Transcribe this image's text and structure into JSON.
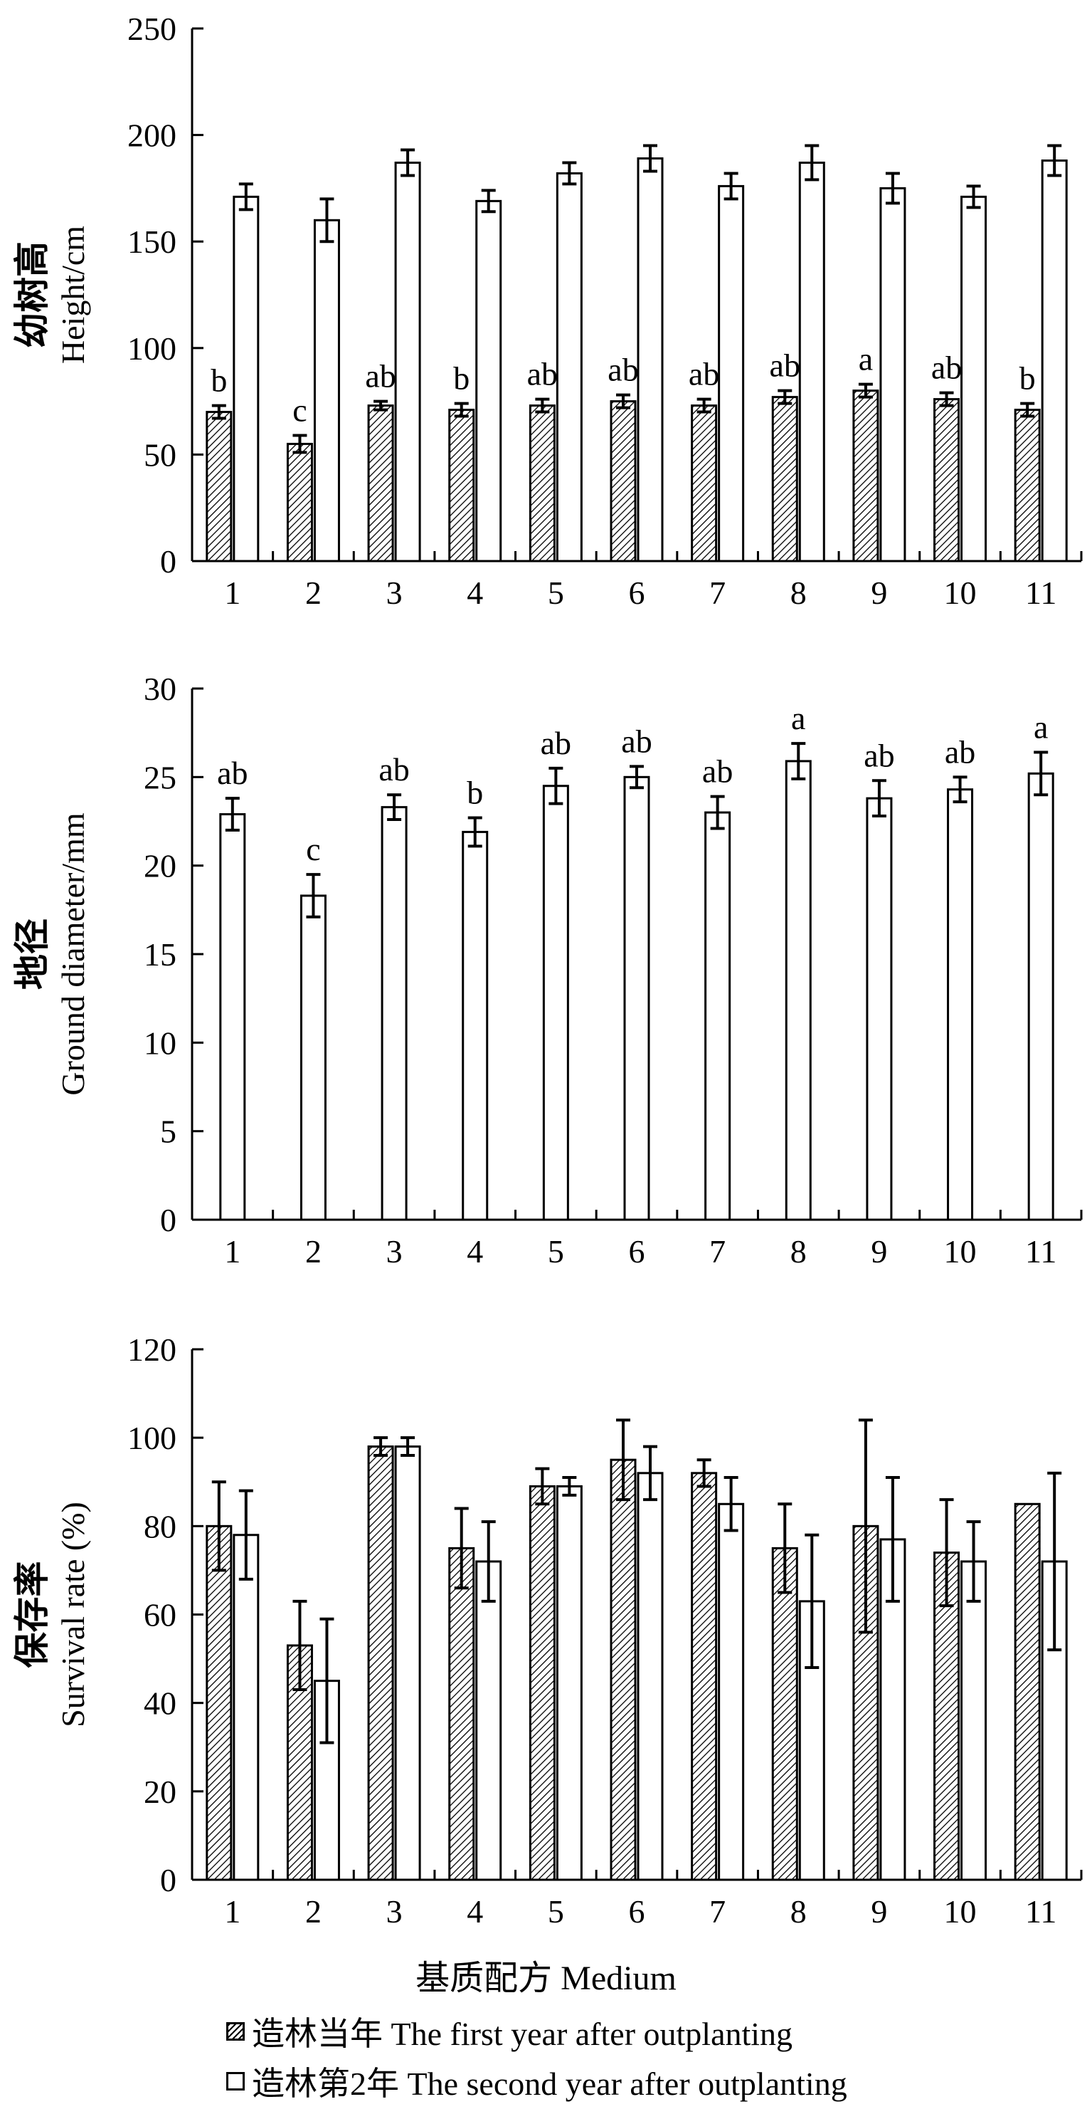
{
  "chart_data": [
    {
      "type": "bar",
      "title": "",
      "ylabel_cn": "幼树高",
      "ylabel_en": "Height/cm",
      "xlabel": "",
      "ylim": [
        0,
        250
      ],
      "yticks": [
        0,
        50,
        100,
        150,
        200,
        250
      ],
      "categories": [
        "1",
        "2",
        "3",
        "4",
        "5",
        "6",
        "7",
        "8",
        "9",
        "10",
        "11"
      ],
      "series": [
        {
          "name": "造林当年 The first year after outplanting",
          "style": "hatched",
          "values": [
            70,
            55,
            73,
            71,
            73,
            75,
            73,
            77,
            80,
            76,
            71
          ],
          "errors": [
            3,
            4,
            2,
            3,
            3,
            3,
            3,
            3,
            3,
            3,
            3
          ]
        },
        {
          "name": "造林第2年 The second year after outplanting",
          "style": "open",
          "values": [
            171,
            160,
            187,
            169,
            182,
            189,
            176,
            187,
            175,
            171,
            188
          ],
          "errors": [
            6,
            10,
            6,
            5,
            5,
            6,
            6,
            8,
            7,
            5,
            7
          ]
        }
      ],
      "labels": [
        "b",
        "c",
        "ab",
        "b",
        "ab",
        "ab",
        "ab",
        "ab",
        "a",
        "ab",
        "b"
      ],
      "label_series": 0
    },
    {
      "type": "bar",
      "title": "",
      "ylabel_cn": "地径",
      "ylabel_en": "Ground diameter/mm",
      "xlabel": "",
      "ylim": [
        0,
        30
      ],
      "yticks": [
        0,
        5,
        10,
        15,
        20,
        25,
        30
      ],
      "categories": [
        "1",
        "2",
        "3",
        "4",
        "5",
        "6",
        "7",
        "8",
        "9",
        "10",
        "11"
      ],
      "series": [
        {
          "name": "地径",
          "style": "open",
          "values": [
            22.9,
            18.3,
            23.3,
            21.9,
            24.5,
            25.0,
            23.0,
            25.9,
            23.8,
            24.3,
            25.2
          ],
          "errors": [
            0.9,
            1.2,
            0.7,
            0.8,
            1.0,
            0.6,
            0.9,
            1.0,
            1.0,
            0.7,
            1.2
          ]
        }
      ],
      "labels": [
        "ab",
        "c",
        "ab",
        "b",
        "ab",
        "ab",
        "ab",
        "a",
        "ab",
        "ab",
        "a"
      ],
      "label_series": 0
    },
    {
      "type": "bar",
      "title": "",
      "ylabel_cn": "保存率",
      "ylabel_en": "Survival rate (%)",
      "xlabel": "基质配方 Medium",
      "ylim": [
        0,
        120
      ],
      "yticks": [
        0,
        20,
        40,
        60,
        80,
        100,
        120
      ],
      "categories": [
        "1",
        "2",
        "3",
        "4",
        "5",
        "6",
        "7",
        "8",
        "9",
        "10",
        "11"
      ],
      "series": [
        {
          "name": "造林当年 The first year after outplanting",
          "style": "hatched",
          "values": [
            80,
            53,
            98,
            75,
            89,
            95,
            92,
            75,
            80,
            74,
            85
          ],
          "errors": [
            10,
            10,
            2,
            9,
            4,
            9,
            3,
            10,
            24,
            12,
            0
          ]
        },
        {
          "name": "造林第2年 The second year after outplanting",
          "style": "open",
          "values": [
            78,
            45,
            98,
            72,
            89,
            92,
            85,
            63,
            77,
            72,
            72
          ],
          "errors": [
            10,
            14,
            2,
            9,
            2,
            6,
            6,
            15,
            14,
            9,
            20
          ]
        }
      ],
      "labels": [],
      "label_series": 0
    }
  ],
  "legend": [
    {
      "text": "造林当年 The first year after outplanting",
      "style": "hatched"
    },
    {
      "text": "造林第2年 The second year after outplanting",
      "style": "open"
    }
  ]
}
